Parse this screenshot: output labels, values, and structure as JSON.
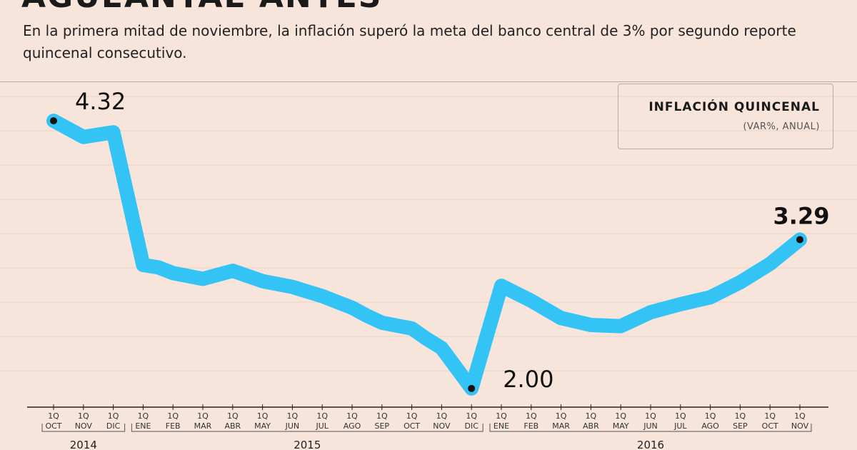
{
  "header": {
    "title_fragment": "AGUEANTAE ANTES",
    "subtitle": "En la primera mitad de noviembre, la inflación superó la meta del banco central de 3% por segundo reporte quincenal consecutivo."
  },
  "legend": {
    "title": "INFLACIÓN QUINCENAL",
    "subtitle": "(VAR%, ANUAL)"
  },
  "colors": {
    "background": "#f7e5dc",
    "line": "#33c3f5",
    "marker": "#111111",
    "grid": "#e8d3ca"
  },
  "chart_data": {
    "type": "line",
    "title": "INFLACIÓN QUINCENAL",
    "ylabel": "(VAR%, ANUAL)",
    "xlabel": "",
    "ylim": [
      1.9,
      4.5
    ],
    "grid": true,
    "categories": [
      {
        "q": "1Q",
        "m": "OCT"
      },
      {
        "q": "1Q",
        "m": "NOV"
      },
      {
        "q": "1Q",
        "m": "DIC"
      },
      {
        "q": "1Q",
        "m": "ENE"
      },
      {
        "q": "1Q",
        "m": "FEB"
      },
      {
        "q": "1Q",
        "m": "MAR"
      },
      {
        "q": "1Q",
        "m": "ABR"
      },
      {
        "q": "1Q",
        "m": "MAY"
      },
      {
        "q": "1Q",
        "m": "JUN"
      },
      {
        "q": "1Q",
        "m": "JUL"
      },
      {
        "q": "1Q",
        "m": "AGO"
      },
      {
        "q": "1Q",
        "m": "SEP"
      },
      {
        "q": "1Q",
        "m": "OCT"
      },
      {
        "q": "1Q",
        "m": "NOV"
      },
      {
        "q": "1Q",
        "m": "DIC"
      },
      {
        "q": "1Q",
        "m": "ENE"
      },
      {
        "q": "1Q",
        "m": "FEB"
      },
      {
        "q": "1Q",
        "m": "MAR"
      },
      {
        "q": "1Q",
        "m": "ABR"
      },
      {
        "q": "1Q",
        "m": "MAY"
      },
      {
        "q": "1Q",
        "m": "JUN"
      },
      {
        "q": "1Q",
        "m": "JUL"
      },
      {
        "q": "1Q",
        "m": "AGO"
      },
      {
        "q": "1Q",
        "m": "SEP"
      },
      {
        "q": "1Q",
        "m": "OCT"
      },
      {
        "q": "1Q",
        "m": "NOV"
      }
    ],
    "x": [
      0,
      1,
      2,
      3,
      3.5,
      4,
      5,
      6,
      7,
      8,
      9,
      10,
      10.5,
      11,
      12,
      12.5,
      13,
      14,
      15,
      16,
      17,
      18,
      19,
      20,
      21,
      22,
      23,
      24,
      25
    ],
    "values": [
      4.32,
      4.18,
      4.22,
      3.07,
      3.05,
      3.0,
      2.95,
      3.02,
      2.93,
      2.88,
      2.8,
      2.7,
      2.63,
      2.57,
      2.52,
      2.43,
      2.35,
      2.0,
      2.89,
      2.76,
      2.61,
      2.55,
      2.54,
      2.66,
      2.73,
      2.79,
      2.92,
      3.08,
      3.29
    ],
    "annotations": [
      {
        "label": "4.32",
        "index": 0,
        "bold": false
      },
      {
        "label": "2.00",
        "index": 17,
        "bold": false
      },
      {
        "label": "3.29",
        "index": 28,
        "bold": true
      }
    ],
    "years": [
      {
        "label": "2014",
        "from": 0,
        "to": 2
      },
      {
        "label": "2015",
        "from": 3,
        "to": 14
      },
      {
        "label": "2016",
        "from": 15,
        "to": 25
      }
    ]
  }
}
